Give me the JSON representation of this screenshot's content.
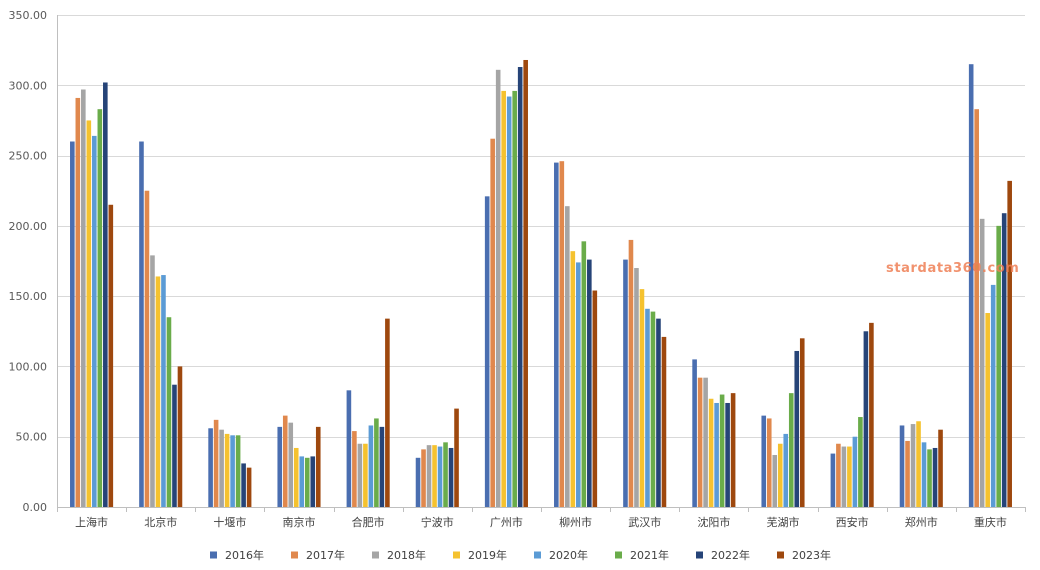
{
  "watermark": "stardata360.com",
  "colors": {
    "background": "#ffffff",
    "grid": "#d9d9d9",
    "axis": "#bfbfbf",
    "watermark": "#ef7f55"
  },
  "chart_data": {
    "type": "bar",
    "categories": [
      "上海市",
      "北京市",
      "十堰市",
      "南京市",
      "合肥市",
      "宁波市",
      "广州市",
      "柳州市",
      "武汉市",
      "沈阳市",
      "芜湖市",
      "西安市",
      "郑州市",
      "重庆市"
    ],
    "series": [
      {
        "name": "2016年",
        "color": "#4a6eb0",
        "values": [
          260,
          260,
          56,
          57,
          83,
          35,
          221,
          245,
          176,
          105,
          65,
          38,
          58,
          315
        ]
      },
      {
        "name": "2017年",
        "color": "#e0884d",
        "values": [
          291,
          225,
          62,
          65,
          54,
          41,
          262,
          246,
          190,
          92,
          63,
          45,
          47,
          283
        ]
      },
      {
        "name": "2018年",
        "color": "#a5a5a5",
        "values": [
          297,
          179,
          55,
          60,
          45,
          44,
          311,
          214,
          170,
          92,
          37,
          43,
          59,
          205
        ]
      },
      {
        "name": "2019年",
        "color": "#f5c22f",
        "values": [
          275,
          164,
          52,
          42,
          45,
          44,
          296,
          182,
          155,
          77,
          45,
          43,
          61,
          138
        ]
      },
      {
        "name": "2020年",
        "color": "#5b9bd5",
        "values": [
          264,
          165,
          51,
          36,
          58,
          43,
          292,
          174,
          141,
          74,
          52,
          50,
          46,
          158
        ]
      },
      {
        "name": "2021年",
        "color": "#6aac4a",
        "values": [
          283,
          135,
          51,
          35,
          63,
          46,
          296,
          189,
          139,
          80,
          81,
          64,
          41,
          200
        ]
      },
      {
        "name": "2022年",
        "color": "#264478",
        "values": [
          302,
          87,
          31,
          36,
          57,
          42,
          313,
          176,
          134,
          74,
          111,
          125,
          42,
          209
        ]
      },
      {
        "name": "2023年",
        "color": "#9e480e",
        "values": [
          215,
          100,
          28,
          57,
          134,
          70,
          318,
          154,
          121,
          81,
          120,
          131,
          55,
          232
        ]
      }
    ],
    "ylim": [
      0,
      350
    ],
    "y_tick_labels": [
      "0.00",
      "50.00",
      "100.00",
      "150.00",
      "200.00",
      "250.00",
      "300.00",
      "350.00"
    ],
    "grid": true,
    "legend": "bottom"
  }
}
